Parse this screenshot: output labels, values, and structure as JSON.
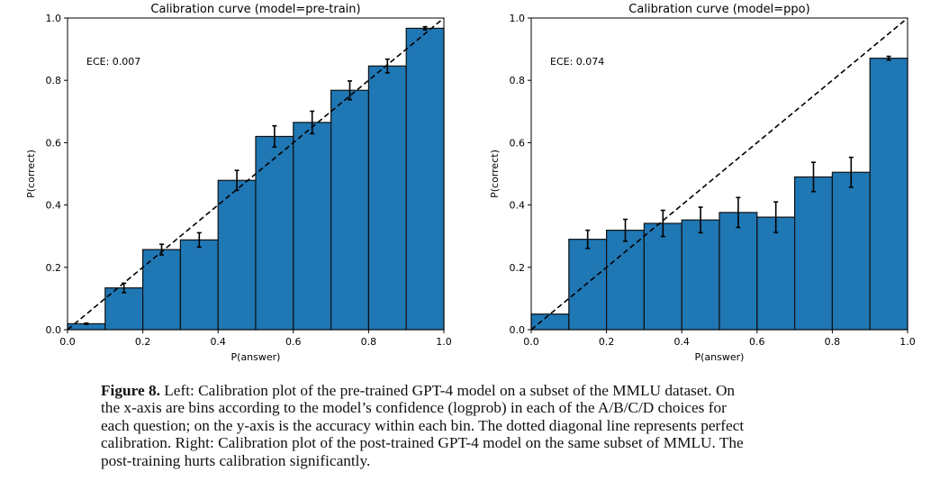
{
  "chart_data": [
    {
      "type": "bar",
      "title": "Calibration curve (model=pre-train)",
      "xlabel": "P(answer)",
      "ylabel": "P(correct)",
      "annotation": "ECE: 0.007",
      "xlim": [
        0,
        1
      ],
      "ylim": [
        0,
        1
      ],
      "xticks": [
        "0.0",
        "0.2",
        "0.4",
        "0.6",
        "0.8",
        "1.0"
      ],
      "yticks": [
        "0.0",
        "0.2",
        "0.4",
        "0.6",
        "0.8",
        "1.0"
      ],
      "bin_edges": [
        0,
        0.1,
        0.2,
        0.3,
        0.4,
        0.5,
        0.6,
        0.7,
        0.8,
        0.9,
        1.0
      ],
      "values": [
        0.019,
        0.134,
        0.257,
        0.288,
        0.479,
        0.62,
        0.665,
        0.768,
        0.846,
        0.967
      ],
      "errors": [
        0.002,
        0.015,
        0.017,
        0.023,
        0.032,
        0.034,
        0.036,
        0.03,
        0.022,
        0.005
      ],
      "reference_line": "dashed diagonal y=x",
      "bar_color": "#1f77b4"
    },
    {
      "type": "bar",
      "title": "Calibration curve (model=ppo)",
      "xlabel": "P(answer)",
      "ylabel": "P(correct)",
      "annotation": "ECE: 0.074",
      "xlim": [
        0,
        1
      ],
      "ylim": [
        0,
        1
      ],
      "xticks": [
        "0.0",
        "0.2",
        "0.4",
        "0.6",
        "0.8",
        "1.0"
      ],
      "yticks": [
        "0.0",
        "0.2",
        "0.4",
        "0.6",
        "0.8",
        "1.0"
      ],
      "bin_edges": [
        0,
        0.1,
        0.2,
        0.3,
        0.4,
        0.5,
        0.6,
        0.7,
        0.8,
        0.9,
        1.0
      ],
      "values": [
        0.05,
        0.29,
        0.319,
        0.341,
        0.352,
        0.376,
        0.361,
        0.49,
        0.505,
        0.871
      ],
      "errors": [
        0.0,
        0.029,
        0.035,
        0.042,
        0.041,
        0.048,
        0.049,
        0.047,
        0.048,
        0.006
      ],
      "reference_line": "dashed diagonal y=x",
      "bar_color": "#1f77b4"
    }
  ],
  "caption": {
    "label": "Figure 8.",
    "lines": [
      " Left: Calibration plot of the pre-trained GPT-4 model on a subset of the MMLU dataset. On",
      "the x-axis are bins according to the model’s confidence (logprob) in each of the A/B/C/D choices for",
      "each question; on the y-axis is the accuracy within each bin. The dotted diagonal line represents perfect",
      "calibration. Right: Calibration plot of the post-trained GPT-4 model on the same subset of MMLU. The",
      "post-training hurts calibration significantly."
    ]
  }
}
